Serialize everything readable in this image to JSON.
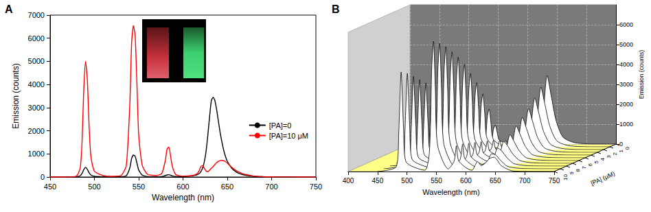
{
  "chart_data": [
    {
      "type": "line",
      "title": "A",
      "xlabel": "Wavelength (nm)",
      "ylabel": "Emission (counts)",
      "x": [
        450,
        460,
        470,
        480,
        484,
        486,
        488,
        490,
        492,
        494,
        496,
        500,
        510,
        520,
        530,
        536,
        540,
        542,
        544,
        546,
        548,
        550,
        554,
        560,
        570,
        576,
        580,
        582,
        584,
        586,
        588,
        592,
        600,
        610,
        615,
        618,
        620,
        622,
        624,
        626,
        628,
        630,
        632,
        634,
        636,
        638,
        640,
        642,
        644,
        646,
        648,
        650,
        655,
        660,
        665,
        670,
        680,
        690,
        700,
        720,
        750
      ],
      "series": [
        {
          "name": "[PA]=0",
          "color": "#000000",
          "values": [
            0,
            0,
            0,
            10,
            60,
            150,
            320,
            420,
            330,
            180,
            90,
            30,
            10,
            5,
            10,
            60,
            400,
            800,
            950,
            900,
            600,
            300,
            80,
            20,
            10,
            20,
            60,
            90,
            100,
            80,
            50,
            20,
            20,
            50,
            90,
            140,
            220,
            380,
            650,
            1100,
            1800,
            2600,
            3300,
            3450,
            3300,
            2900,
            2400,
            1900,
            1500,
            1150,
            880,
            680,
            380,
            220,
            130,
            80,
            30,
            15,
            8,
            3,
            0
          ]
        },
        {
          "name": "[PA]=10 μM",
          "color": "#ff0000",
          "values": [
            0,
            0,
            0,
            50,
            400,
            1500,
            3800,
            5000,
            4200,
            2200,
            900,
            250,
            60,
            30,
            60,
            500,
            3200,
            5800,
            6550,
            6100,
            4000,
            1800,
            500,
            120,
            60,
            150,
            700,
            1200,
            1300,
            900,
            450,
            100,
            40,
            60,
            120,
            250,
            440,
            500,
            380,
            260,
            230,
            300,
            380,
            450,
            540,
            620,
            680,
            710,
            720,
            700,
            660,
            600,
            420,
            280,
            180,
            110,
            40,
            15,
            8,
            3,
            0
          ]
        }
      ],
      "xlim": [
        450,
        750
      ],
      "xticks": [
        450,
        500,
        550,
        600,
        650,
        700,
        750
      ],
      "ylim": [
        0,
        7000
      ],
      "yticks": [
        0,
        1000,
        2000,
        3000,
        4000,
        5000,
        6000,
        7000
      ],
      "legend": "right",
      "grid": false
    },
    {
      "type": "line",
      "title": "B",
      "xlabel": "Wavelength (nm)",
      "ylabel": "Emission (counts)",
      "zlabel": "[PA] (μM)",
      "color": "#000000",
      "x": [
        450,
        482,
        486,
        490,
        494,
        498,
        530,
        538,
        542,
        545,
        548,
        552,
        570,
        580,
        584,
        588,
        610,
        620,
        626,
        633,
        640,
        648,
        660,
        680,
        720,
        750
      ],
      "series": [
        {
          "z": 0,
          "values": [
            0,
            20,
            170,
            420,
            190,
            40,
            10,
            140,
            760,
            950,
            620,
            190,
            20,
            40,
            100,
            40,
            40,
            350,
            1380,
            3450,
            2420,
            1210,
            350,
            70,
            0,
            0
          ]
        },
        {
          "z": 1,
          "values": [
            0,
            65,
            520,
            1300,
            590,
            130,
            20,
            290,
            1520,
            1900,
            1240,
            380,
            40,
            120,
            300,
            120,
            50,
            350,
            1200,
            3000,
            2100,
            1050,
            300,
            60,
            0,
            0
          ]
        },
        {
          "z": 2,
          "values": [
            0,
            100,
            800,
            2000,
            900,
            200,
            30,
            420,
            2240,
            2800,
            1820,
            560,
            60,
            180,
            450,
            180,
            60,
            320,
            1040,
            2600,
            1820,
            910,
            260,
            50,
            0,
            0
          ]
        },
        {
          "z": 3,
          "values": [
            0,
            130,
            1040,
            2600,
            1170,
            260,
            35,
            520,
            2800,
            3500,
            2280,
            700,
            70,
            240,
            600,
            240,
            60,
            300,
            880,
            2200,
            1540,
            770,
            220,
            45,
            0,
            0
          ]
        },
        {
          "z": 4,
          "values": [
            0,
            155,
            1240,
            3100,
            1400,
            310,
            40,
            620,
            3280,
            4100,
            2670,
            820,
            80,
            300,
            750,
            300,
            60,
            290,
            760,
            1900,
            1330,
            670,
            190,
            40,
            0,
            0
          ]
        },
        {
          "z": 5,
          "values": [
            0,
            175,
            1400,
            3500,
            1580,
            350,
            45,
            700,
            3760,
            4700,
            3060,
            940,
            95,
            340,
            850,
            340,
            60,
            280,
            640,
            1600,
            1150,
            600,
            170,
            35,
            0,
            0
          ]
        },
        {
          "z": 6,
          "values": [
            0,
            195,
            1560,
            3900,
            1760,
            390,
            50,
            780,
            4160,
            5200,
            3380,
            1040,
            105,
            380,
            950,
            380,
            60,
            270,
            540,
            1300,
            950,
            520,
            150,
            30,
            0,
            0
          ]
        },
        {
          "z": 7,
          "values": [
            0,
            210,
            1680,
            4200,
            1890,
            420,
            55,
            840,
            4480,
            5600,
            3640,
            1120,
            110,
            420,
            1050,
            420,
            60,
            260,
            460,
            1100,
            850,
            480,
            140,
            30,
            0,
            0
          ]
        },
        {
          "z": 8,
          "values": [
            0,
            225,
            1800,
            4500,
            2030,
            450,
            60,
            900,
            4800,
            6000,
            3900,
            1200,
            120,
            460,
            1150,
            460,
            60,
            260,
            380,
            900,
            760,
            450,
            130,
            25,
            0,
            0
          ]
        },
        {
          "z": 9,
          "values": [
            0,
            240,
            1920,
            4800,
            2160,
            480,
            63,
            950,
            5040,
            6300,
            4100,
            1260,
            125,
            500,
            1250,
            500,
            60,
            260,
            320,
            750,
            700,
            440,
            125,
            25,
            0,
            0
          ]
        },
        {
          "z": 10,
          "values": [
            0,
            250,
            2000,
            5000,
            2250,
            500,
            65,
            980,
            5240,
            6550,
            4260,
            1310,
            130,
            520,
            1300,
            520,
            60,
            500,
            300,
            420,
            650,
            720,
            300,
            25,
            0,
            0
          ]
        }
      ],
      "xlim": [
        400,
        750
      ],
      "xticks": [
        400,
        450,
        500,
        550,
        600,
        650,
        700,
        750
      ],
      "ylim": [
        0,
        7000
      ],
      "yticks": [
        0,
        1000,
        2000,
        3000,
        4000,
        5000,
        6000
      ],
      "zlim": [
        0,
        10
      ],
      "zticks": [
        0,
        1,
        2,
        3,
        4,
        5,
        6,
        7,
        8,
        9,
        10
      ],
      "grid": true
    }
  ]
}
